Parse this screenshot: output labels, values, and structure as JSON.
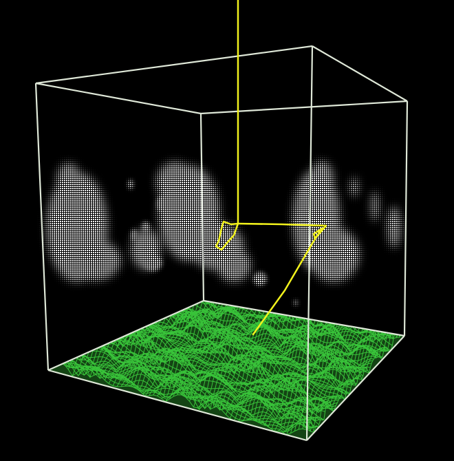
{
  "scene": {
    "background": "#000000",
    "box_color": "#dfe8d8",
    "surface_color": "#39c43a",
    "track_color": "#f2f21c",
    "blob_color": "#f4f4f4"
  }
}
